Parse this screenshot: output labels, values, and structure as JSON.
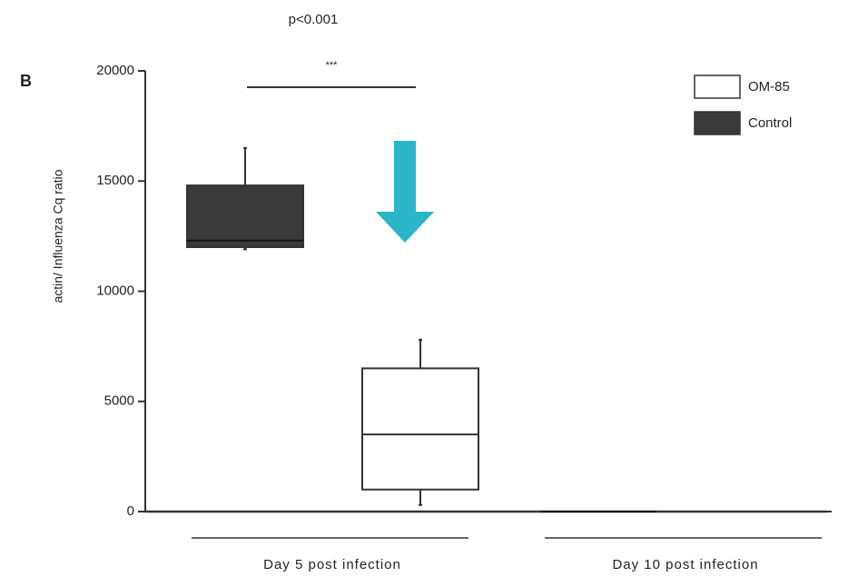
{
  "chart_data": {
    "type": "box",
    "panel_label": "B",
    "y_label": "actin/ Influenza Cq ratio",
    "annotations": {
      "p_value": "p<0.001",
      "stars": "***"
    },
    "categories": [
      "Day 5 post infection",
      "Day 10 post infection"
    ],
    "series": [
      {
        "name": "OM-85",
        "color": "#ffffff",
        "min": [
          300,
          0
        ],
        "q1": [
          1000,
          0
        ],
        "median": [
          3500,
          0
        ],
        "q3": [
          6500,
          0
        ],
        "max": [
          7800,
          0
        ]
      },
      {
        "name": "Control",
        "color": "#3a3a3a",
        "min": [
          11900,
          0
        ],
        "q1": [
          12000,
          0
        ],
        "median": [
          12300,
          0
        ],
        "q3": [
          14800,
          0
        ],
        "max": [
          16500,
          0
        ]
      }
    ],
    "ylim": [
      0,
      20000
    ],
    "yticks": [
      0,
      5000,
      10000,
      15000,
      20000
    ],
    "legend": "top-right"
  }
}
